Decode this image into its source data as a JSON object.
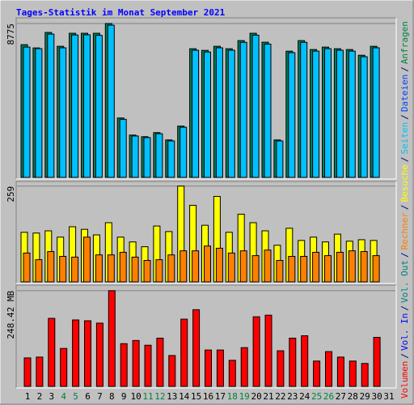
{
  "chart_data": {
    "type": "bar",
    "title": "Tages-Statistik im Monat September 2021",
    "categories": [
      "1",
      "2",
      "3",
      "4",
      "5",
      "6",
      "7",
      "8",
      "9",
      "10",
      "11",
      "12",
      "13",
      "14",
      "15",
      "16",
      "17",
      "18",
      "19",
      "20",
      "21",
      "22",
      "23",
      "24",
      "25",
      "26",
      "27",
      "28",
      "29",
      "30",
      "31"
    ],
    "category_colors": [
      "#000000",
      "#000000",
      "#000000",
      "#008040",
      "#008040",
      "#000000",
      "#000000",
      "#000000",
      "#000000",
      "#000000",
      "#008040",
      "#008040",
      "#000000",
      "#000000",
      "#000000",
      "#000000",
      "#000000",
      "#008040",
      "#008040",
      "#000000",
      "#000000",
      "#000000",
      "#000000",
      "#000000",
      "#008040",
      "#008040",
      "#000000",
      "#000000",
      "#000000",
      "#000000",
      "#000000"
    ],
    "separator": "/",
    "legend": [
      {
        "name": "Volumen",
        "color": "#FF0000"
      },
      {
        "name": "Vol. In",
        "color": "#0000FF"
      },
      {
        "name": "Vol. Out",
        "color": "#008080"
      },
      {
        "name": "Rechner",
        "color": "#FF8000"
      },
      {
        "name": "Besuche",
        "color": "#FFFF00"
      },
      {
        "name": "Seiten",
        "color": "#00C0FF"
      },
      {
        "name": "Dateien",
        "color": "#0040FF"
      },
      {
        "name": "Anfragen",
        "color": "#008040"
      }
    ],
    "panels": [
      {
        "ylim": [
          0,
          8960
        ],
        "yticks": [
          8775
        ],
        "series": [
          {
            "color": "#00805C",
            "values": [
              7568,
              7382,
              8265,
              7475,
              8218,
              8218,
              8218,
              8775,
              3389,
              2414,
              2321,
              2554,
              2136,
              2925,
              7336,
              7243,
              7475,
              7336,
              7800,
              8218,
              7707,
              2136,
              7197,
              7800,
              7290,
              7429,
              7336,
              7290,
              6964,
              7475,
              null
            ]
          },
          {
            "color": "#00C0FF",
            "values": [
              7430,
              7340,
              8170,
              7390,
              8120,
              8130,
              8100,
              8680,
              3310,
              2360,
              2270,
              2490,
              2080,
              2860,
              7250,
              7150,
              7390,
              7250,
              7700,
              8110,
              7600,
              2080,
              7110,
              7700,
              7200,
              7340,
              7250,
              7200,
              6880,
              7390,
              null
            ]
          }
        ]
      },
      {
        "ylim": [
          0,
          265
        ],
        "yticks": [
          259
        ],
        "series": [
          {
            "color": "#FFFF00",
            "values": [
              134,
              132,
              138,
              121,
              149,
              142,
              127,
              160,
              121,
              108,
              95,
              151,
              136,
              259,
              207,
              153,
              231,
              134,
              183,
              160,
              138,
              99,
              145,
              112,
              121,
              108,
              129,
              110,
              114,
              112,
              null
            ]
          },
          {
            "color": "#FF8000",
            "values": [
              78,
              60,
              82,
              69,
              67,
              121,
              73,
              73,
              80,
              67,
              58,
              60,
              73,
              84,
              84,
              97,
              91,
              78,
              84,
              71,
              86,
              58,
              69,
              69,
              80,
              71,
              80,
              84,
              82,
              71,
              null
            ]
          }
        ]
      },
      {
        "ylim": [
          0,
          256.6
        ],
        "yticks": [
          {
            "value": 248.42,
            "label": "248.42 MB"
          }
        ],
        "series": [
          {
            "color": "#FF0000",
            "values": [
              73.9,
              76.0,
              176.6,
              98.5,
              172.5,
              170.4,
              164.2,
              248.42,
              110.9,
              119.1,
              106.8,
              125.2,
              80.1,
              174.5,
              199.1,
              94.4,
              94.4,
              67.7,
              100.6,
              180.7,
              184.8,
              92.4,
              125.2,
              131.4,
              65.7,
              90.3,
              76.0,
              65.7,
              59.5,
              127.3,
              null
            ]
          }
        ]
      }
    ]
  }
}
